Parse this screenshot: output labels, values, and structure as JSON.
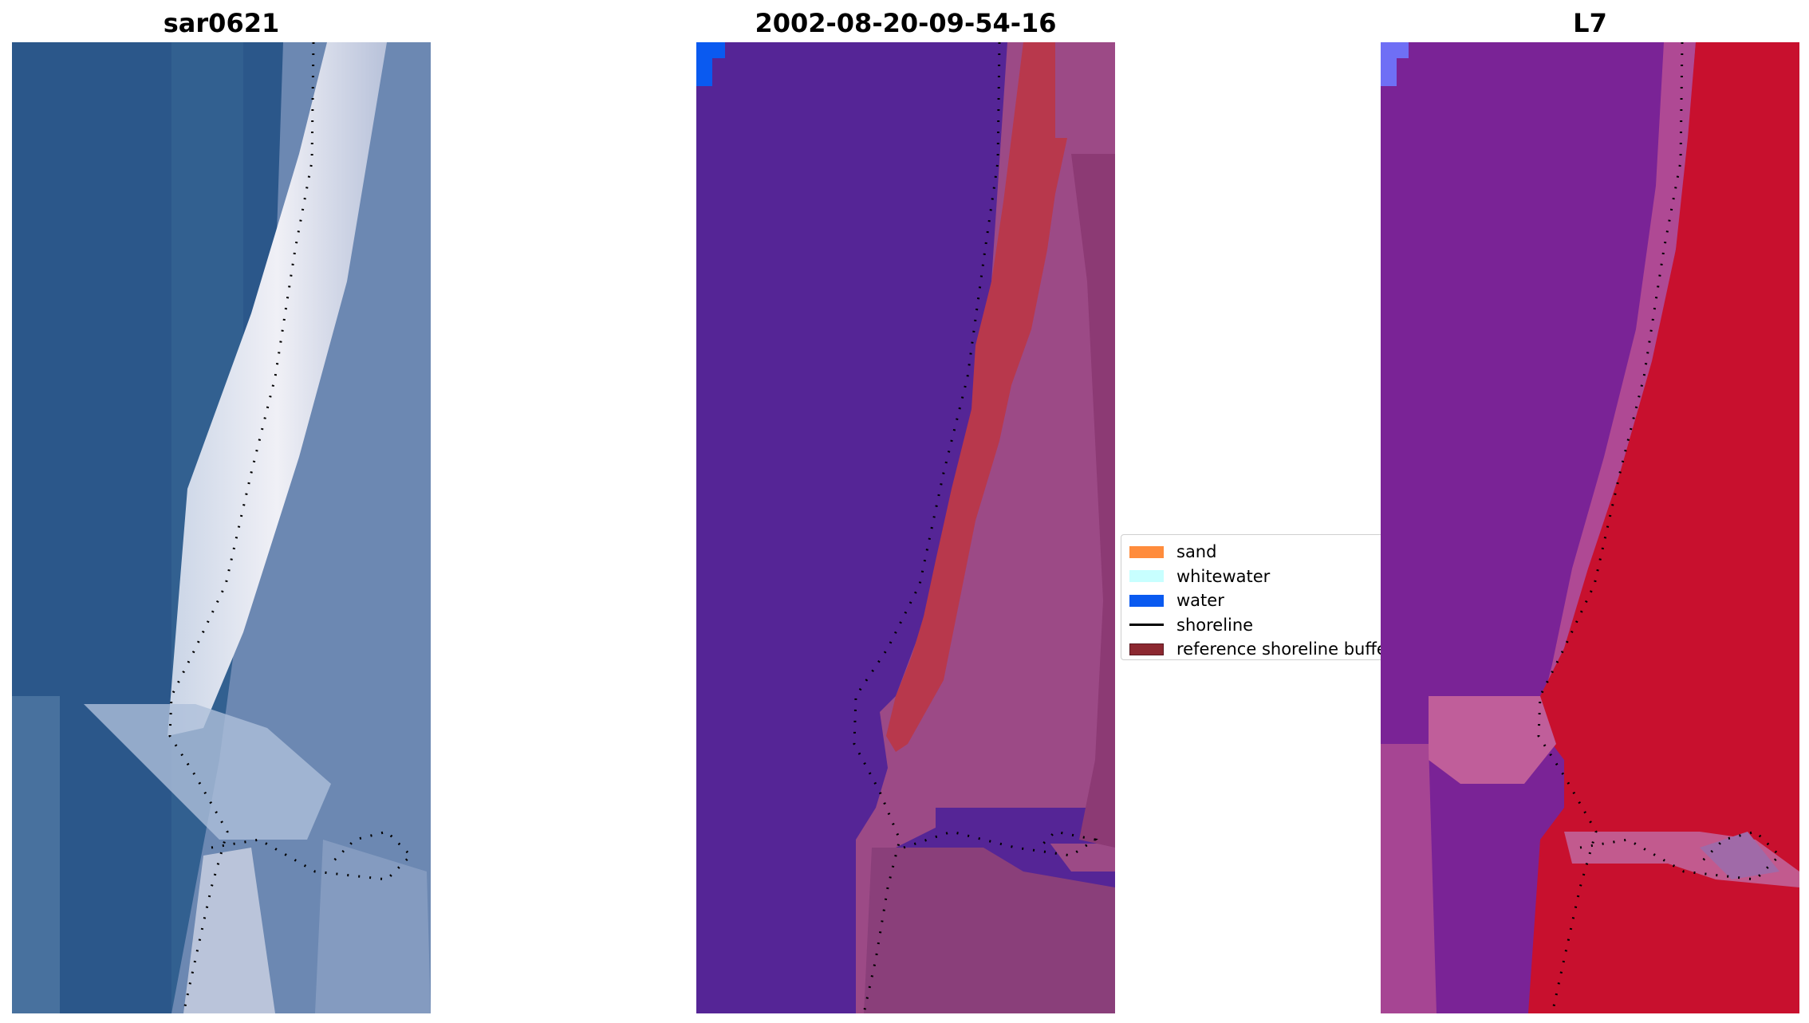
{
  "panels": [
    {
      "id": "rgb",
      "title": "sar0621"
    },
    {
      "id": "classification",
      "title": "2002-08-20-09-54-16"
    },
    {
      "id": "index",
      "title": "L7"
    }
  ],
  "legend": {
    "items": [
      {
        "label": "sand",
        "color": "#ff8c3c",
        "kind": "patch"
      },
      {
        "label": "whitewater",
        "color": "#c8ffff",
        "kind": "patch"
      },
      {
        "label": "water",
        "color": "#0a5af0",
        "kind": "patch"
      },
      {
        "label": "shoreline",
        "color": "#000000",
        "kind": "line"
      },
      {
        "label": "reference shoreline buffer",
        "color": "#8c2830",
        "kind": "patch"
      }
    ]
  },
  "colors": {
    "sea_rgb": "#2d5a8c",
    "surf_rgb": "#e6e6f0",
    "land_rgb": "#6a86b0",
    "class_water": "#552596",
    "class_sand": "#b8384c",
    "class_land": "#9c4a86",
    "index_water": "#7a2396",
    "index_land": "#c8102e"
  }
}
